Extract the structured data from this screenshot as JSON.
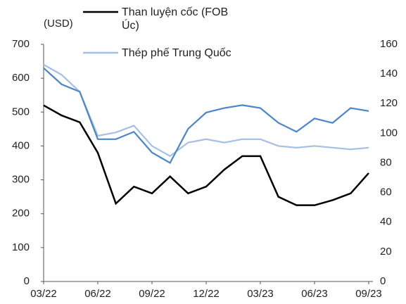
{
  "chart_data": {
    "type": "line",
    "y_label": "(USD)",
    "categories": [
      "03/22",
      null,
      null,
      "06/22",
      null,
      null,
      "09/22",
      null,
      null,
      "12/22",
      null,
      null,
      "03/23",
      null,
      null,
      "06/23",
      null,
      null,
      "09/23"
    ],
    "series": [
      {
        "name": "Than luyện cốc (FOB Úc)",
        "color": "#000000",
        "values": [
          520,
          490,
          470,
          380,
          230,
          280,
          260,
          310,
          260,
          280,
          330,
          370,
          370,
          250,
          225,
          225,
          240,
          260,
          320
        ]
      },
      {
        "name": "Thép phế Trung Quốc",
        "color": "#a6bfe4",
        "values": [
          640,
          610,
          560,
          430,
          440,
          460,
          400,
          370,
          410,
          420,
          410,
          420,
          420,
          400,
          395,
          400,
          395,
          390,
          395
        ]
      },
      {
        "color": "#4a86c8",
        "axis": "y2",
        "values": [
          144,
          133,
          128,
          96,
          96,
          101,
          87,
          80,
          103,
          114,
          117,
          119,
          117,
          107,
          101,
          110,
          107,
          117,
          115
        ]
      }
    ],
    "ylim": [
      0,
      700
    ],
    "yticks": [
      0,
      100,
      200,
      300,
      400,
      500,
      600,
      700
    ],
    "y2lim": [
      0,
      160
    ],
    "y2ticks": [
      0,
      20,
      40,
      60,
      80,
      100,
      120,
      140,
      160
    ]
  }
}
